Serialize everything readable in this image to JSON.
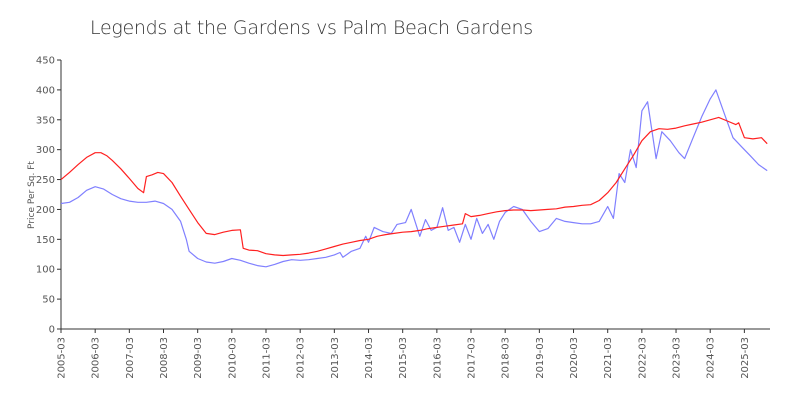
{
  "chart_data": {
    "type": "line",
    "title": "Legends at the Gardens vs Palm Beach Gardens",
    "ylabel": "Price Per Sq. Ft",
    "xlabel": "",
    "ylim": [
      0,
      450
    ],
    "y_ticks": [
      0,
      50,
      100,
      150,
      200,
      250,
      300,
      350,
      400,
      450
    ],
    "x_ticks": [
      "2005-03",
      "2006-03",
      "2007-03",
      "2008-03",
      "2009-03",
      "2010-03",
      "2011-03",
      "2012-03",
      "2013-03",
      "2014-03",
      "2015-03",
      "2016-03",
      "2017-03",
      "2018-03",
      "2019-03",
      "2020-03",
      "2021-03",
      "2022-03",
      "2023-03",
      "2024-03",
      "2025-03"
    ],
    "grid": false,
    "legend": "none",
    "series": [
      {
        "color": "#ff2020",
        "points": [
          [
            "2005-03",
            250
          ],
          [
            "2005-06",
            262
          ],
          [
            "2005-09",
            275
          ],
          [
            "2005-12",
            287
          ],
          [
            "2006-03",
            295
          ],
          [
            "2006-05",
            295
          ],
          [
            "2006-07",
            290
          ],
          [
            "2006-09",
            282
          ],
          [
            "2006-12",
            268
          ],
          [
            "2007-03",
            252
          ],
          [
            "2007-06",
            235
          ],
          [
            "2007-08",
            228
          ],
          [
            "2007-09",
            255
          ],
          [
            "2007-11",
            258
          ],
          [
            "2008-01",
            262
          ],
          [
            "2008-03",
            260
          ],
          [
            "2008-06",
            245
          ],
          [
            "2008-09",
            222
          ],
          [
            "2008-12",
            200
          ],
          [
            "2009-03",
            178
          ],
          [
            "2009-06",
            160
          ],
          [
            "2009-09",
            158
          ],
          [
            "2009-12",
            162
          ],
          [
            "2010-03",
            165
          ],
          [
            "2010-06",
            166
          ],
          [
            "2010-07",
            135
          ],
          [
            "2010-09",
            132
          ],
          [
            "2010-12",
            131
          ],
          [
            "2011-03",
            126
          ],
          [
            "2011-06",
            124
          ],
          [
            "2011-09",
            123
          ],
          [
            "2011-12",
            124
          ],
          [
            "2012-03",
            125
          ],
          [
            "2012-06",
            127
          ],
          [
            "2012-09",
            130
          ],
          [
            "2012-12",
            134
          ],
          [
            "2013-03",
            138
          ],
          [
            "2013-06",
            142
          ],
          [
            "2013-09",
            145
          ],
          [
            "2013-12",
            148
          ],
          [
            "2014-03",
            150
          ],
          [
            "2014-06",
            155
          ],
          [
            "2014-09",
            158
          ],
          [
            "2014-12",
            160
          ],
          [
            "2015-03",
            162
          ],
          [
            "2015-06",
            163
          ],
          [
            "2015-09",
            165
          ],
          [
            "2015-12",
            168
          ],
          [
            "2016-03",
            170
          ],
          [
            "2016-06",
            172
          ],
          [
            "2016-09",
            174
          ],
          [
            "2016-12",
            176
          ],
          [
            "2017-01",
            193
          ],
          [
            "2017-03",
            188
          ],
          [
            "2017-06",
            190
          ],
          [
            "2017-09",
            193
          ],
          [
            "2017-12",
            196
          ],
          [
            "2018-03",
            198
          ],
          [
            "2018-06",
            199
          ],
          [
            "2018-09",
            199
          ],
          [
            "2018-12",
            198
          ],
          [
            "2019-03",
            199
          ],
          [
            "2019-06",
            200
          ],
          [
            "2019-09",
            201
          ],
          [
            "2019-12",
            204
          ],
          [
            "2020-03",
            205
          ],
          [
            "2020-06",
            207
          ],
          [
            "2020-09",
            208
          ],
          [
            "2020-12",
            215
          ],
          [
            "2021-03",
            228
          ],
          [
            "2021-06",
            245
          ],
          [
            "2021-09",
            268
          ],
          [
            "2021-12",
            290
          ],
          [
            "2022-03",
            315
          ],
          [
            "2022-06",
            330
          ],
          [
            "2022-09",
            335
          ],
          [
            "2022-12",
            334
          ],
          [
            "2023-03",
            336
          ],
          [
            "2023-06",
            340
          ],
          [
            "2023-09",
            343
          ],
          [
            "2023-12",
            346
          ],
          [
            "2024-03",
            350
          ],
          [
            "2024-06",
            354
          ],
          [
            "2024-09",
            348
          ],
          [
            "2024-12",
            342
          ],
          [
            "2025-01",
            345
          ],
          [
            "2025-03",
            320
          ],
          [
            "2025-06",
            318
          ],
          [
            "2025-09",
            320
          ],
          [
            "2025-11",
            310
          ]
        ]
      },
      {
        "color": "#8080ff",
        "points": [
          [
            "2005-03",
            210
          ],
          [
            "2005-06",
            212
          ],
          [
            "2005-09",
            220
          ],
          [
            "2005-12",
            232
          ],
          [
            "2006-03",
            238
          ],
          [
            "2006-06",
            234
          ],
          [
            "2006-09",
            225
          ],
          [
            "2006-12",
            218
          ],
          [
            "2007-03",
            214
          ],
          [
            "2007-06",
            212
          ],
          [
            "2007-09",
            212
          ],
          [
            "2007-12",
            214
          ],
          [
            "2008-03",
            210
          ],
          [
            "2008-06",
            200
          ],
          [
            "2008-09",
            180
          ],
          [
            "2008-11",
            150
          ],
          [
            "2008-12",
            130
          ],
          [
            "2009-03",
            118
          ],
          [
            "2009-06",
            112
          ],
          [
            "2009-09",
            110
          ],
          [
            "2009-12",
            113
          ],
          [
            "2010-03",
            118
          ],
          [
            "2010-06",
            115
          ],
          [
            "2010-09",
            110
          ],
          [
            "2010-12",
            106
          ],
          [
            "2011-03",
            104
          ],
          [
            "2011-06",
            108
          ],
          [
            "2011-09",
            113
          ],
          [
            "2011-12",
            116
          ],
          [
            "2012-03",
            115
          ],
          [
            "2012-06",
            116
          ],
          [
            "2012-09",
            118
          ],
          [
            "2012-12",
            120
          ],
          [
            "2013-03",
            124
          ],
          [
            "2013-05",
            128
          ],
          [
            "2013-06",
            120
          ],
          [
            "2013-09",
            130
          ],
          [
            "2013-12",
            135
          ],
          [
            "2014-02",
            155
          ],
          [
            "2014-03",
            145
          ],
          [
            "2014-05",
            170
          ],
          [
            "2014-08",
            163
          ],
          [
            "2014-11",
            160
          ],
          [
            "2015-01",
            175
          ],
          [
            "2015-04",
            178
          ],
          [
            "2015-06",
            200
          ],
          [
            "2015-09",
            155
          ],
          [
            "2015-11",
            183
          ],
          [
            "2016-01",
            165
          ],
          [
            "2016-03",
            170
          ],
          [
            "2016-05",
            203
          ],
          [
            "2016-07",
            165
          ],
          [
            "2016-09",
            170
          ],
          [
            "2016-11",
            145
          ],
          [
            "2017-01",
            175
          ],
          [
            "2017-03",
            150
          ],
          [
            "2017-05",
            185
          ],
          [
            "2017-07",
            160
          ],
          [
            "2017-09",
            175
          ],
          [
            "2017-11",
            150
          ],
          [
            "2018-01",
            180
          ],
          [
            "2018-03",
            195
          ],
          [
            "2018-06",
            205
          ],
          [
            "2018-09",
            200
          ],
          [
            "2018-12",
            180
          ],
          [
            "2019-03",
            163
          ],
          [
            "2019-06",
            168
          ],
          [
            "2019-09",
            185
          ],
          [
            "2019-12",
            180
          ],
          [
            "2020-03",
            178
          ],
          [
            "2020-06",
            176
          ],
          [
            "2020-09",
            176
          ],
          [
            "2020-12",
            180
          ],
          [
            "2021-03",
            205
          ],
          [
            "2021-05",
            185
          ],
          [
            "2021-07",
            260
          ],
          [
            "2021-09",
            245
          ],
          [
            "2021-11",
            300
          ],
          [
            "2022-01",
            270
          ],
          [
            "2022-03",
            365
          ],
          [
            "2022-05",
            380
          ],
          [
            "2022-08",
            285
          ],
          [
            "2022-10",
            330
          ],
          [
            "2023-01",
            315
          ],
          [
            "2023-04",
            295
          ],
          [
            "2023-06",
            285
          ],
          [
            "2023-09",
            320
          ],
          [
            "2023-12",
            355
          ],
          [
            "2024-03",
            385
          ],
          [
            "2024-05",
            400
          ],
          [
            "2024-08",
            360
          ],
          [
            "2024-11",
            320
          ],
          [
            "2025-02",
            305
          ],
          [
            "2025-05",
            290
          ],
          [
            "2025-08",
            275
          ],
          [
            "2025-11",
            265
          ]
        ]
      }
    ]
  }
}
